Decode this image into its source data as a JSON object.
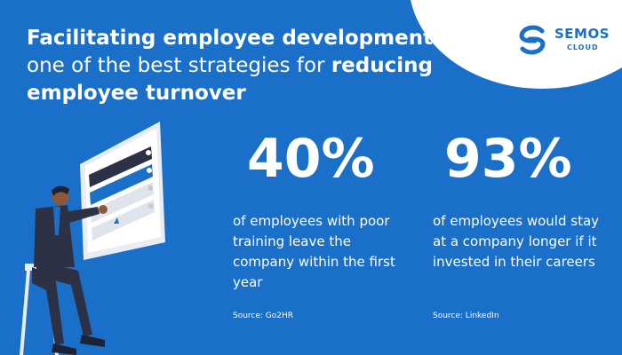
{
  "headline": {
    "b1": "Facilitating employee development",
    "t1": " is one of the best strategies for ",
    "b2": "reducing employee turnover"
  },
  "logo": {
    "word": "SEMOS",
    "sub": "CLOUD"
  },
  "stats": [
    {
      "value": "40%",
      "description": "of employees with poor training leave the company within the first year",
      "source": "Source: Go2HR"
    },
    {
      "value": "93%",
      "description": "of employees would stay at a company longer if it invested in their careers",
      "source": "Source: LinkedIn"
    }
  ],
  "colors": {
    "background": "#1a6fc8",
    "accent": "#ffffff",
    "dark": "#2d3145"
  },
  "icons": [
    "semos-logo-icon",
    "presentation-board-illustration",
    "person-illustration"
  ]
}
